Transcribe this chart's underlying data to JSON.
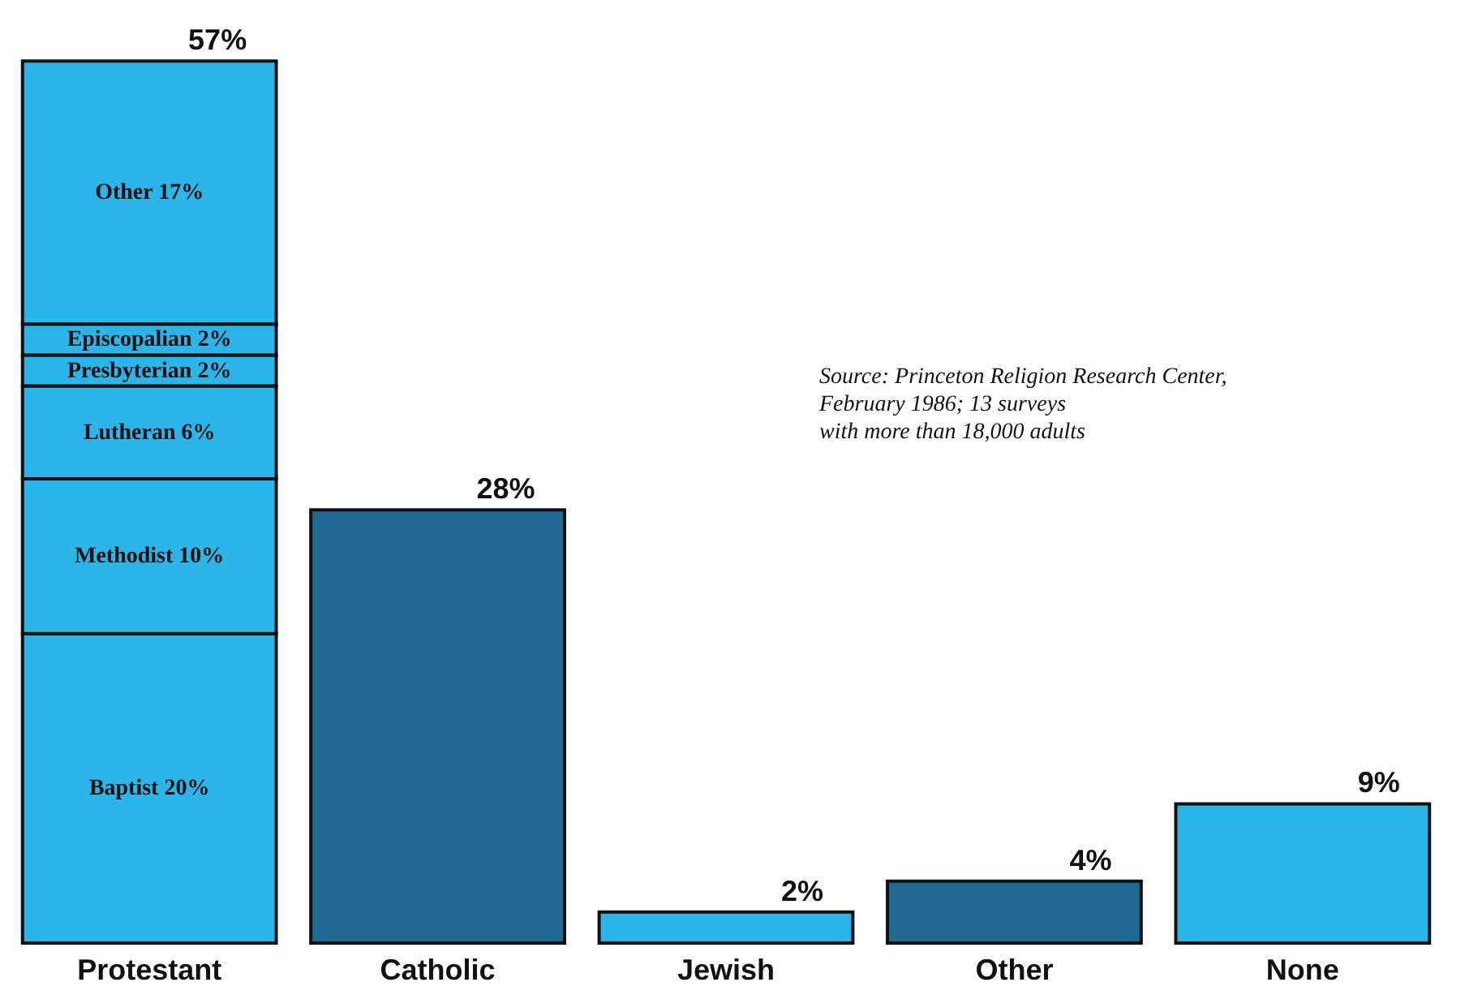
{
  "chart_data": {
    "type": "bar",
    "stacked": true,
    "tick_labels": "x",
    "categories": [
      "Protestant",
      "Catholic",
      "Jewish",
      "Other",
      "None"
    ],
    "series": [
      {
        "color": "#2bb5e8",
        "values": [
          20,
          null,
          null,
          null,
          null
        ],
        "value_labels": [
          "Baptist 20%",
          null,
          null,
          null,
          null
        ]
      },
      {
        "color": "#2bb5e8",
        "values": [
          10,
          null,
          null,
          null,
          null
        ],
        "value_labels": [
          "Methodist 10%",
          null,
          null,
          null,
          null
        ]
      },
      {
        "color": "#2bb5e8",
        "values": [
          6,
          null,
          null,
          null,
          null
        ],
        "value_labels": [
          "Lutheran 6%",
          null,
          null,
          null,
          null
        ]
      },
      {
        "color": "#2bb5e8",
        "values": [
          2,
          null,
          null,
          null,
          null
        ],
        "value_labels": [
          "Presbyterian 2%",
          null,
          null,
          null,
          null
        ]
      },
      {
        "color": "#2bb5e8",
        "values": [
          2,
          null,
          null,
          null,
          null
        ],
        "value_labels": [
          "Episcopalian 2%",
          null,
          null,
          null,
          null
        ]
      },
      {
        "color": "#2bb5e8",
        "values": [
          17,
          null,
          null,
          null,
          null
        ],
        "value_labels": [
          "Other 17%",
          null,
          null,
          null,
          null
        ]
      },
      {
        "colors": [
          null,
          "#1f6a94",
          "#2bb5e8",
          "#1f6a94",
          "#2bb5e8"
        ],
        "values": [
          null,
          28,
          2,
          4,
          9
        ]
      }
    ],
    "totals": [
      "57%",
      "28%",
      "2%",
      "4%",
      "9%"
    ],
    "annotations": [
      "Source: Princeton Religion Research Center,\nFebruary 1986; 13 surveys\nwith more than 18,000 adults"
    ]
  }
}
